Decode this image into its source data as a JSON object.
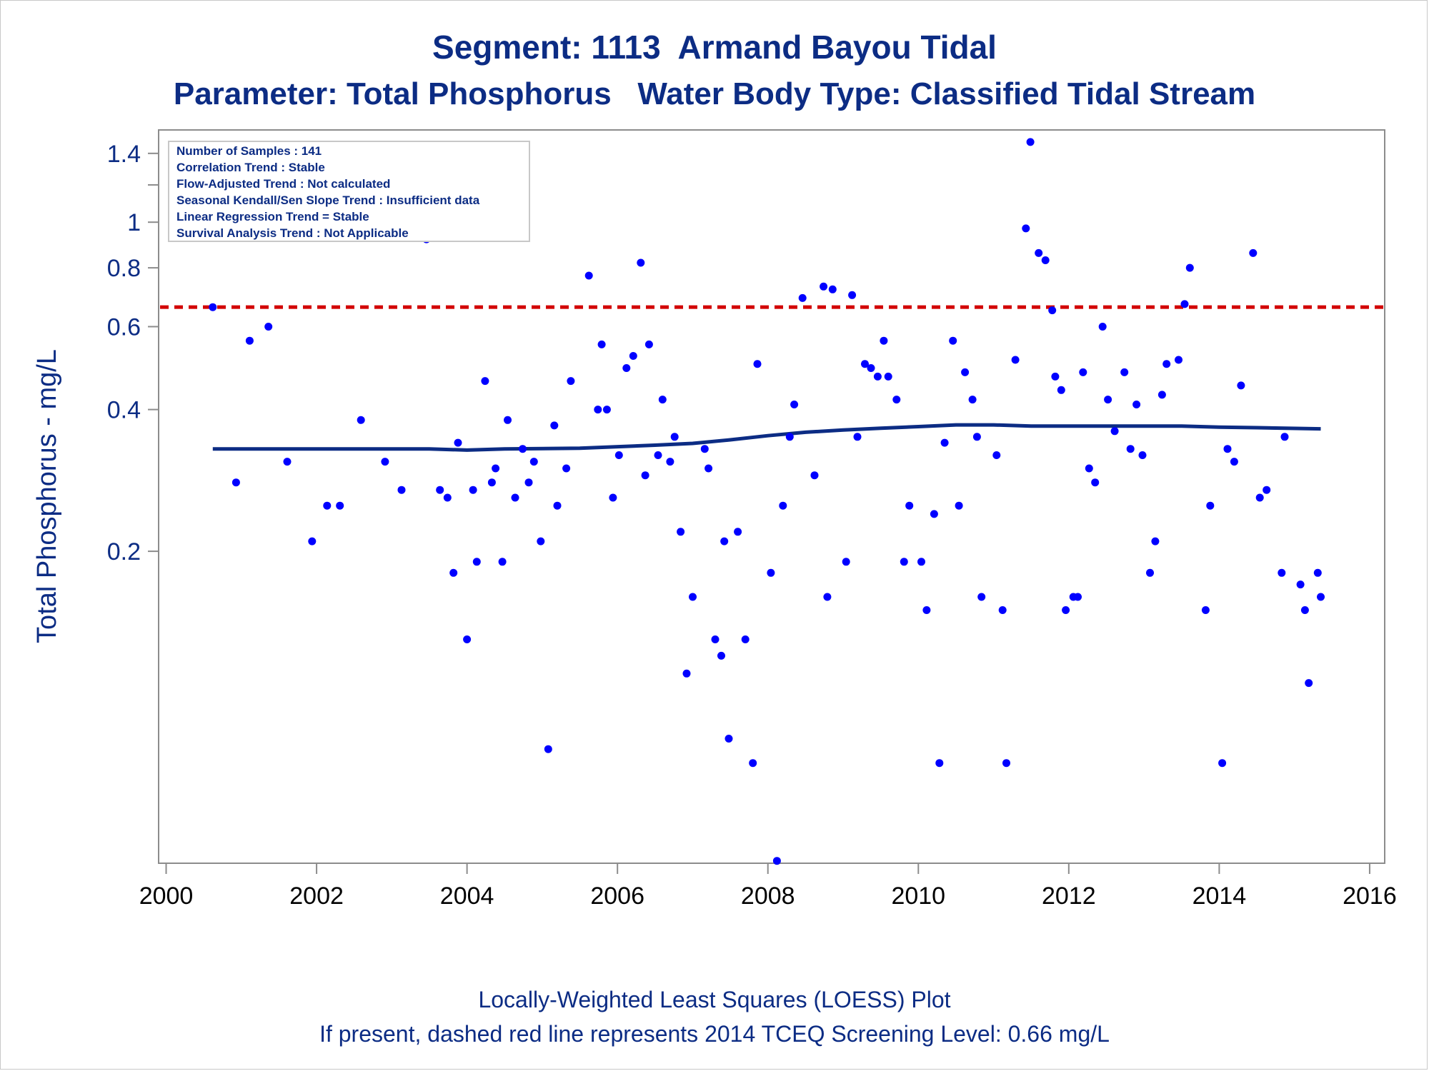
{
  "chart_data": {
    "type": "scatter",
    "title": "Segment: 1113  Armand Bayou Tidal",
    "subtitle": "Parameter: Total Phosphorus   Water Body Type: Classified Tidal Stream",
    "ylabel": "Total Phosphorus - mg/L",
    "xlabel": "",
    "footnotes": [
      "Locally-Weighted Least Squares (LOESS) Plot",
      "If present, dashed red line represents 2014 TCEQ Screening Level: 0.66 mg/L"
    ],
    "info_box": [
      "Number of Samples : 141",
      "Correlation Trend : Stable",
      "Flow-Adjusted Trend : Not calculated",
      "Seasonal Kendall/Sen Slope Trend : Insufficient data",
      "Linear Regression Trend = Stable",
      "Survival Analysis Trend : Not Applicable"
    ],
    "y_scale": "log",
    "xlim": [
      1999.9,
      2016.2
    ],
    "ylim": [
      0.0435,
      1.57
    ],
    "x_ticks": [
      2000,
      2002,
      2004,
      2006,
      2008,
      2010,
      2012,
      2014,
      2016
    ],
    "y_ticks": [
      0.2,
      0.4,
      0.6,
      0.8,
      1,
      1.4
    ],
    "y_minor_ticks": [
      1.2
    ],
    "screening_level": 0.66,
    "colors": {
      "text": "#0c2c84",
      "points": "#0000ff",
      "loess": "#0c2c84",
      "screening": "#d20000",
      "axis": "#8c8c8c"
    },
    "grid": false,
    "points": [
      {
        "x": 2000.62,
        "y": 0.66
      },
      {
        "x": 2000.93,
        "y": 0.28
      },
      {
        "x": 2001.11,
        "y": 0.56
      },
      {
        "x": 2001.36,
        "y": 0.6
      },
      {
        "x": 2001.61,
        "y": 0.31
      },
      {
        "x": 2001.94,
        "y": 0.21
      },
      {
        "x": 2002.14,
        "y": 0.25
      },
      {
        "x": 2002.31,
        "y": 0.25
      },
      {
        "x": 2002.59,
        "y": 0.38
      },
      {
        "x": 2002.91,
        "y": 0.31
      },
      {
        "x": 2003.13,
        "y": 0.27
      },
      {
        "x": 2003.46,
        "y": 0.92
      },
      {
        "x": 2003.64,
        "y": 0.27
      },
      {
        "x": 2003.74,
        "y": 0.26
      },
      {
        "x": 2003.82,
        "y": 0.18
      },
      {
        "x": 2003.88,
        "y": 0.34
      },
      {
        "x": 2004.0,
        "y": 0.13
      },
      {
        "x": 2004.08,
        "y": 0.27
      },
      {
        "x": 2004.13,
        "y": 0.19
      },
      {
        "x": 2004.24,
        "y": 0.46
      },
      {
        "x": 2004.33,
        "y": 0.28
      },
      {
        "x": 2004.38,
        "y": 0.3
      },
      {
        "x": 2004.47,
        "y": 0.19
      },
      {
        "x": 2004.54,
        "y": 0.38
      },
      {
        "x": 2004.64,
        "y": 0.26
      },
      {
        "x": 2004.74,
        "y": 0.33
      },
      {
        "x": 2004.82,
        "y": 0.28
      },
      {
        "x": 2004.89,
        "y": 0.31
      },
      {
        "x": 2004.98,
        "y": 0.21
      },
      {
        "x": 2005.08,
        "y": 0.076
      },
      {
        "x": 2005.16,
        "y": 0.37
      },
      {
        "x": 2005.2,
        "y": 0.25
      },
      {
        "x": 2005.32,
        "y": 0.3
      },
      {
        "x": 2005.38,
        "y": 0.46
      },
      {
        "x": 2005.62,
        "y": 0.77
      },
      {
        "x": 2005.74,
        "y": 0.4
      },
      {
        "x": 2005.79,
        "y": 0.55
      },
      {
        "x": 2005.86,
        "y": 0.4
      },
      {
        "x": 2005.94,
        "y": 0.26
      },
      {
        "x": 2006.02,
        "y": 0.32
      },
      {
        "x": 2006.12,
        "y": 0.49
      },
      {
        "x": 2006.21,
        "y": 0.52
      },
      {
        "x": 2006.31,
        "y": 0.82
      },
      {
        "x": 2006.37,
        "y": 0.29
      },
      {
        "x": 2006.42,
        "y": 0.55
      },
      {
        "x": 2006.54,
        "y": 0.32
      },
      {
        "x": 2006.6,
        "y": 0.42
      },
      {
        "x": 2006.7,
        "y": 0.31
      },
      {
        "x": 2006.76,
        "y": 0.35
      },
      {
        "x": 2006.84,
        "y": 0.22
      },
      {
        "x": 2006.92,
        "y": 0.11
      },
      {
        "x": 2007.0,
        "y": 0.16
      },
      {
        "x": 2007.16,
        "y": 0.33
      },
      {
        "x": 2007.21,
        "y": 0.3
      },
      {
        "x": 2007.3,
        "y": 0.13
      },
      {
        "x": 2007.38,
        "y": 0.12
      },
      {
        "x": 2007.42,
        "y": 0.21
      },
      {
        "x": 2007.48,
        "y": 0.08
      },
      {
        "x": 2007.6,
        "y": 0.22
      },
      {
        "x": 2007.7,
        "y": 0.13
      },
      {
        "x": 2007.8,
        "y": 0.071
      },
      {
        "x": 2007.86,
        "y": 0.5
      },
      {
        "x": 2008.04,
        "y": 0.18
      },
      {
        "x": 2008.12,
        "y": 0.044
      },
      {
        "x": 2008.2,
        "y": 0.25
      },
      {
        "x": 2008.29,
        "y": 0.35
      },
      {
        "x": 2008.35,
        "y": 0.41
      },
      {
        "x": 2008.46,
        "y": 0.69
      },
      {
        "x": 2008.62,
        "y": 0.29
      },
      {
        "x": 2008.74,
        "y": 0.73
      },
      {
        "x": 2008.79,
        "y": 0.16
      },
      {
        "x": 2008.86,
        "y": 0.72
      },
      {
        "x": 2009.04,
        "y": 0.19
      },
      {
        "x": 2009.12,
        "y": 0.7
      },
      {
        "x": 2009.19,
        "y": 0.35
      },
      {
        "x": 2009.29,
        "y": 0.5
      },
      {
        "x": 2009.37,
        "y": 0.49
      },
      {
        "x": 2009.46,
        "y": 0.47
      },
      {
        "x": 2009.54,
        "y": 0.56
      },
      {
        "x": 2009.6,
        "y": 0.47
      },
      {
        "x": 2009.71,
        "y": 0.42
      },
      {
        "x": 2009.81,
        "y": 0.19
      },
      {
        "x": 2009.88,
        "y": 0.25
      },
      {
        "x": 2010.04,
        "y": 0.19
      },
      {
        "x": 2010.11,
        "y": 0.15
      },
      {
        "x": 2010.21,
        "y": 0.24
      },
      {
        "x": 2010.28,
        "y": 0.071
      },
      {
        "x": 2010.35,
        "y": 0.34
      },
      {
        "x": 2010.46,
        "y": 0.56
      },
      {
        "x": 2010.54,
        "y": 0.25
      },
      {
        "x": 2010.62,
        "y": 0.48
      },
      {
        "x": 2010.72,
        "y": 0.42
      },
      {
        "x": 2010.78,
        "y": 0.35
      },
      {
        "x": 2010.84,
        "y": 0.16
      },
      {
        "x": 2011.04,
        "y": 0.32
      },
      {
        "x": 2011.12,
        "y": 0.15
      },
      {
        "x": 2011.17,
        "y": 0.071
      },
      {
        "x": 2011.29,
        "y": 0.51
      },
      {
        "x": 2011.43,
        "y": 0.97
      },
      {
        "x": 2011.49,
        "y": 1.48
      },
      {
        "x": 2011.6,
        "y": 0.86
      },
      {
        "x": 2011.69,
        "y": 0.83
      },
      {
        "x": 2011.78,
        "y": 0.65
      },
      {
        "x": 2011.82,
        "y": 0.47
      },
      {
        "x": 2011.9,
        "y": 0.44
      },
      {
        "x": 2011.96,
        "y": 0.15
      },
      {
        "x": 2012.06,
        "y": 0.16
      },
      {
        "x": 2012.12,
        "y": 0.16
      },
      {
        "x": 2012.19,
        "y": 0.48
      },
      {
        "x": 2012.27,
        "y": 0.3
      },
      {
        "x": 2012.35,
        "y": 0.28
      },
      {
        "x": 2012.45,
        "y": 0.6
      },
      {
        "x": 2012.52,
        "y": 0.42
      },
      {
        "x": 2012.61,
        "y": 0.36
      },
      {
        "x": 2012.74,
        "y": 0.48
      },
      {
        "x": 2012.82,
        "y": 0.33
      },
      {
        "x": 2012.9,
        "y": 0.41
      },
      {
        "x": 2012.98,
        "y": 0.32
      },
      {
        "x": 2013.08,
        "y": 0.18
      },
      {
        "x": 2013.15,
        "y": 0.21
      },
      {
        "x": 2013.24,
        "y": 0.43
      },
      {
        "x": 2013.3,
        "y": 0.5
      },
      {
        "x": 2013.46,
        "y": 0.51
      },
      {
        "x": 2013.54,
        "y": 0.67
      },
      {
        "x": 2013.61,
        "y": 0.8
      },
      {
        "x": 2013.82,
        "y": 0.15
      },
      {
        "x": 2013.88,
        "y": 0.25
      },
      {
        "x": 2014.04,
        "y": 0.071
      },
      {
        "x": 2014.11,
        "y": 0.33
      },
      {
        "x": 2014.2,
        "y": 0.31
      },
      {
        "x": 2014.29,
        "y": 0.45
      },
      {
        "x": 2014.45,
        "y": 0.86
      },
      {
        "x": 2014.54,
        "y": 0.26
      },
      {
        "x": 2014.63,
        "y": 0.27
      },
      {
        "x": 2014.83,
        "y": 0.18
      },
      {
        "x": 2014.87,
        "y": 0.35
      },
      {
        "x": 2015.08,
        "y": 0.17
      },
      {
        "x": 2015.14,
        "y": 0.15
      },
      {
        "x": 2015.19,
        "y": 0.105
      },
      {
        "x": 2015.31,
        "y": 0.18
      },
      {
        "x": 2015.35,
        "y": 0.16
      }
    ],
    "loess_line": [
      {
        "x": 2000.62,
        "y": 0.33
      },
      {
        "x": 2003.5,
        "y": 0.33
      },
      {
        "x": 2004.0,
        "y": 0.328
      },
      {
        "x": 2004.5,
        "y": 0.33
      },
      {
        "x": 2005.5,
        "y": 0.331
      },
      {
        "x": 2006.5,
        "y": 0.336
      },
      {
        "x": 2007.0,
        "y": 0.339
      },
      {
        "x": 2007.5,
        "y": 0.345
      },
      {
        "x": 2008.0,
        "y": 0.352
      },
      {
        "x": 2008.5,
        "y": 0.358
      },
      {
        "x": 2009.0,
        "y": 0.362
      },
      {
        "x": 2009.5,
        "y": 0.365
      },
      {
        "x": 2010.0,
        "y": 0.368
      },
      {
        "x": 2010.5,
        "y": 0.371
      },
      {
        "x": 2011.0,
        "y": 0.371
      },
      {
        "x": 2011.5,
        "y": 0.369
      },
      {
        "x": 2012.5,
        "y": 0.369
      },
      {
        "x": 2013.5,
        "y": 0.369
      },
      {
        "x": 2014.0,
        "y": 0.367
      },
      {
        "x": 2014.5,
        "y": 0.366
      },
      {
        "x": 2015.35,
        "y": 0.364
      }
    ]
  }
}
